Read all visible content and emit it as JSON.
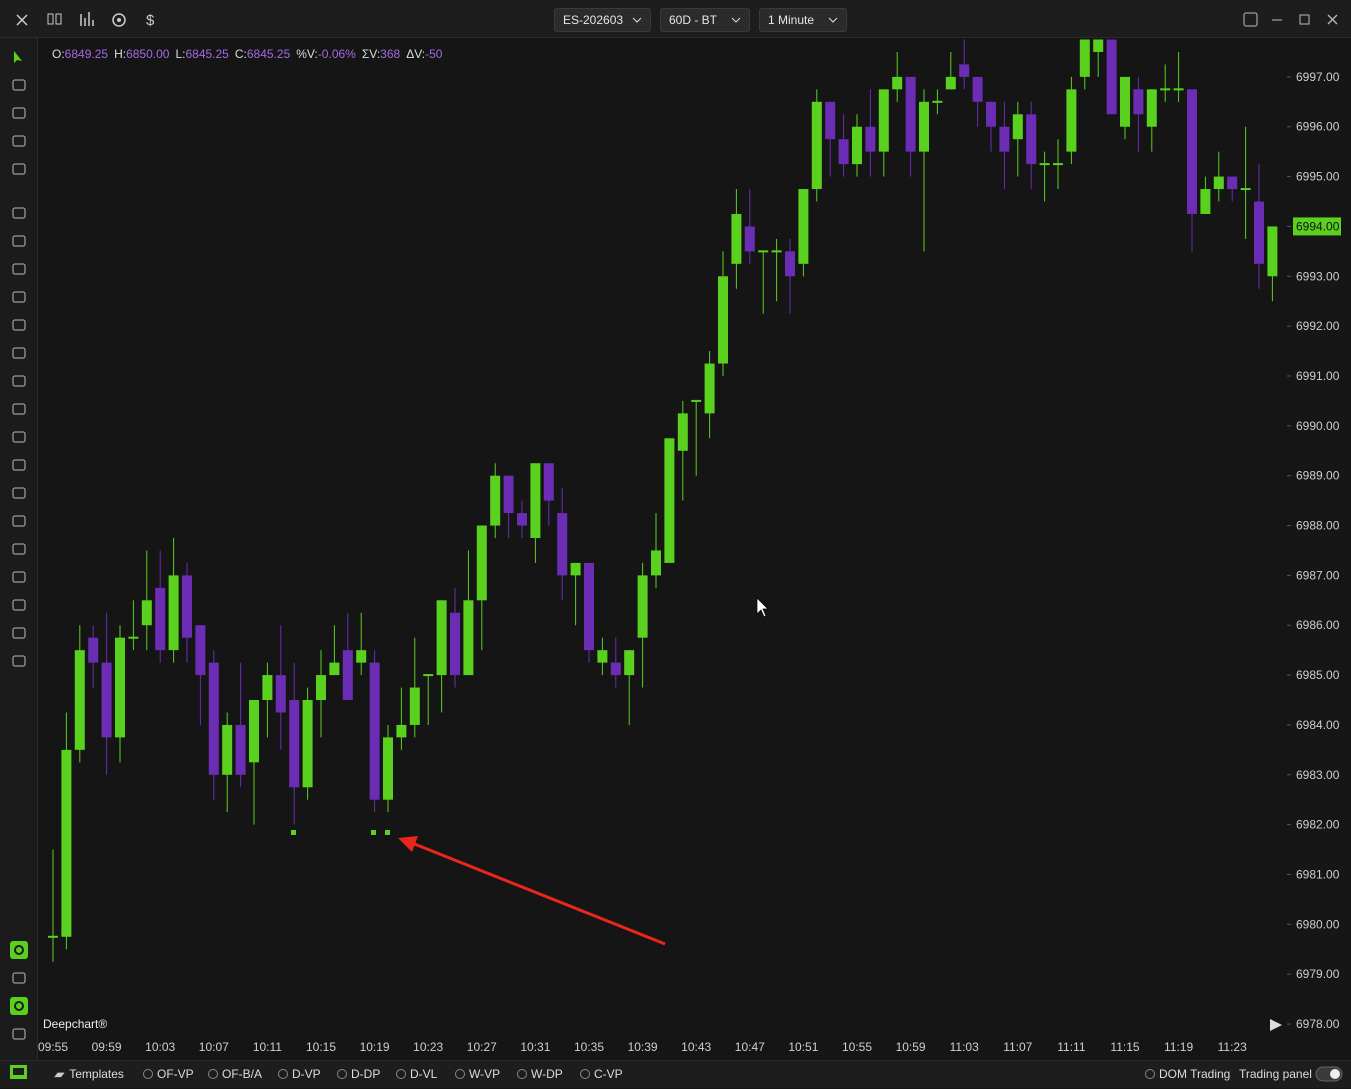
{
  "toolbar": {
    "symbol": "ES-202603",
    "range": "60D - BT",
    "interval": "1 Minute"
  },
  "header_stats": [
    {
      "label": "O:",
      "value": "6849.25"
    },
    {
      "label": "H:",
      "value": "6850.00"
    },
    {
      "label": "L:",
      "value": "6845.25"
    },
    {
      "label": "C:",
      "value": "6845.25"
    },
    {
      "label": "%V:",
      "value": "-0.06%"
    },
    {
      "label": "ΣV:",
      "value": "368"
    },
    {
      "label": "ΔV:",
      "value": "-50"
    }
  ],
  "chart_data": {
    "type": "candlestick",
    "title": "Deepchart®",
    "categories": [
      "09:55",
      null,
      null,
      null,
      "09:59",
      null,
      null,
      null,
      "10:03",
      null,
      null,
      null,
      "10:07",
      null,
      null,
      null,
      "10:11",
      null,
      null,
      null,
      "10:15",
      null,
      null,
      null,
      "10:19",
      null,
      null,
      null,
      "10:23",
      null,
      null,
      null,
      "10:27",
      null,
      null,
      null,
      "10:31",
      null,
      null,
      null,
      "10:35",
      null,
      null,
      null,
      "10:39",
      null,
      null,
      null,
      "10:43",
      null,
      null,
      null,
      "10:47",
      null,
      null,
      null,
      "10:51",
      null,
      null,
      null,
      "10:55",
      null,
      null,
      null,
      "10:59",
      null,
      null,
      null,
      "11:03",
      null,
      null,
      null,
      "11:07",
      null,
      null,
      null,
      "11:11",
      null,
      null,
      null,
      "11:15",
      null,
      null,
      null,
      "11:19",
      null,
      null,
      null,
      "11:23",
      null,
      null,
      null
    ],
    "open": [
      6979.75,
      6979.75,
      6983.5,
      6985.75,
      6985.25,
      6983.75,
      6985.75,
      6986,
      6986.75,
      6985.5,
      6987,
      6986,
      6985.25,
      6983,
      6984,
      6983.25,
      6984.5,
      6985,
      6984.5,
      6982.75,
      6984.5,
      6985,
      6985.5,
      6985.25,
      6985.25,
      6982.5,
      6983.75,
      6984,
      6985,
      6985,
      6986.25,
      6985,
      6986.5,
      6988,
      6989,
      6988.25,
      6987.75,
      6989.25,
      6988.25,
      6987,
      6987.25,
      6985.25,
      6985.25,
      6985,
      6985.75,
      6987,
      6987.25,
      6989.5,
      6990.5,
      6990.25,
      6991.25,
      6993.25,
      6994,
      6993.5,
      6993.5,
      6993.5,
      6993.25,
      6994.75,
      6996.5,
      6995.75,
      6995.25,
      6996,
      6995.5,
      6996.75,
      6997,
      6995.5,
      6996.5,
      6996.75,
      6997.25,
      6997,
      6996.5,
      6996,
      6995.75,
      6996.25,
      6995.25,
      6995.25,
      6995.5,
      6997,
      6997.5,
      6997.75,
      6996,
      6996.75,
      6996,
      6996.75,
      6996.75,
      6996.75,
      6994.25,
      6994.75,
      6995,
      6994.75,
      6994.5,
      6993
    ],
    "high": [
      6981.5,
      6984.25,
      6986,
      6986,
      6986.25,
      6986,
      6986.5,
      6987.5,
      6987.5,
      6987.75,
      6987.25,
      6986,
      6985.5,
      6984.25,
      6985.25,
      6984.5,
      6985.25,
      6986,
      6985.25,
      6984.75,
      6985.5,
      6986,
      6986.25,
      6986.25,
      6985.5,
      6984,
      6984.75,
      6985.75,
      6985,
      6986.5,
      6986.75,
      6987.5,
      6988,
      6989.25,
      6989,
      6988.5,
      6989.25,
      6989.25,
      6988.75,
      6987.25,
      6987.25,
      6985.75,
      6985.75,
      6985.5,
      6987.25,
      6988.25,
      6989.75,
      6990.5,
      6990.5,
      6991.5,
      6993.5,
      6994.75,
      6994.75,
      6993.5,
      6993.75,
      6993.75,
      6994.75,
      6996.75,
      6996.5,
      6996.25,
      6996.25,
      6996.75,
      6996.75,
      6997.5,
      6997,
      6996.75,
      6996.75,
      6997.5,
      6997.75,
      6997,
      6996.5,
      6996.5,
      6996.5,
      6996.5,
      6995.5,
      6995.75,
      6997,
      6997.75,
      6997.75,
      6997.75,
      6997,
      6997,
      6996.75,
      6997.25,
      6997.5,
      6996.75,
      6995,
      6995.5,
      6995,
      6996,
      6995.25,
      6994
    ],
    "low": [
      6979.25,
      6979.5,
      6983.25,
      6984.75,
      6983,
      6983.25,
      6985.5,
      6985.5,
      6985.25,
      6985.25,
      6985.25,
      6984,
      6982.5,
      6982.25,
      6982.75,
      6982,
      6983.75,
      6983.5,
      6982,
      6982.5,
      6983.75,
      6985,
      6984.5,
      6985,
      6982.25,
      6982.25,
      6983.5,
      6983.75,
      6984,
      6984.25,
      6984.75,
      6985,
      6985.5,
      6987.75,
      6987.75,
      6987.75,
      6987.25,
      6988,
      6986.5,
      6986,
      6985.25,
      6985,
      6984.75,
      6984,
      6984.75,
      6986.75,
      6987.25,
      6988.5,
      6989,
      6989.75,
      6991,
      6992.75,
      6993.25,
      6992.25,
      6992.5,
      6992.25,
      6993,
      6994.5,
      6995,
      6995,
      6995,
      6995,
      6995,
      6996.5,
      6995,
      6993.5,
      6996.25,
      6996.75,
      6996.75,
      6996,
      6995.5,
      6994.75,
      6995,
      6994.75,
      6994.5,
      6994.75,
      6995.25,
      6996.75,
      6997,
      6996.25,
      6995.75,
      6995.5,
      6995.5,
      6996.5,
      6996.5,
      6993.5,
      6994.25,
      6994.5,
      6994.5,
      6993.75,
      6992.75,
      6992.5
    ],
    "close": [
      6979.75,
      6983.5,
      6985.5,
      6985.25,
      6983.75,
      6985.75,
      6985.75,
      6986.5,
      6985.5,
      6987,
      6985.75,
      6985,
      6983,
      6984,
      6983,
      6984.5,
      6985,
      6984.25,
      6982.75,
      6984.5,
      6985,
      6985.25,
      6984.5,
      6985.5,
      6982.5,
      6983.75,
      6984,
      6984.75,
      6985,
      6986.5,
      6985,
      6986.5,
      6988,
      6989,
      6988.25,
      6988,
      6989.25,
      6988.5,
      6987,
      6987.25,
      6985.5,
      6985.5,
      6985,
      6985.5,
      6987,
      6987.5,
      6989.75,
      6990.25,
      6990.5,
      6991.25,
      6993,
      6994.25,
      6993.5,
      6993.5,
      6993.5,
      6993,
      6994.75,
      6996.5,
      6995.75,
      6995.25,
      6996,
      6995.5,
      6996.75,
      6997,
      6995.5,
      6996.5,
      6996.5,
      6997,
      6997,
      6996.5,
      6996,
      6995.5,
      6996.25,
      6995.25,
      6995.25,
      6995.25,
      6996.75,
      6997.75,
      6997.75,
      6996.25,
      6997,
      6996.25,
      6996.75,
      6996.75,
      6996.75,
      6994.25,
      6994.75,
      6995,
      6994.75,
      6994.75,
      6993.25,
      6994
    ],
    "up_color": "#5ad11e",
    "down_color": "#6a2db4",
    "ylim": [
      6977.76,
      6997.78
    ],
    "yticks": [
      {
        "value": 6978,
        "label": "6978.00"
      },
      {
        "value": 6979,
        "label": "6979.00"
      },
      {
        "value": 6980,
        "label": "6980.00"
      },
      {
        "value": 6981,
        "label": "6981.00"
      },
      {
        "value": 6982,
        "label": "6982.00"
      },
      {
        "value": 6983,
        "label": "6983.00"
      },
      {
        "value": 6984,
        "label": "6984.00"
      },
      {
        "value": 6985,
        "label": "6985.00"
      },
      {
        "value": 6986,
        "label": "6986.00"
      },
      {
        "value": 6987,
        "label": "6987.00"
      },
      {
        "value": 6988,
        "label": "6988.00"
      },
      {
        "value": 6989,
        "label": "6989.00"
      },
      {
        "value": 6990,
        "label": "6990.00"
      },
      {
        "value": 6991,
        "label": "6991.00"
      },
      {
        "value": 6992,
        "label": "6992.00"
      },
      {
        "value": 6993,
        "label": "6993.00"
      },
      {
        "value": 6994,
        "label": "6994.00"
      },
      {
        "value": 6995,
        "label": "6995.00"
      },
      {
        "value": 6996,
        "label": "6996.00"
      },
      {
        "value": 6997,
        "label": "6997.00"
      }
    ],
    "last_price": {
      "value": 6994,
      "label": "6994.00"
    },
    "grid": false
  },
  "bottom_bar": {
    "templates": "Templates",
    "studies": [
      "OF-VP",
      "OF-B/A",
      "D-VP",
      "D-DP",
      "D-VL",
      "W-VP",
      "W-DP",
      "C-VP"
    ],
    "dom_trading": "DOM Trading",
    "trading_panel": "Trading panel"
  }
}
